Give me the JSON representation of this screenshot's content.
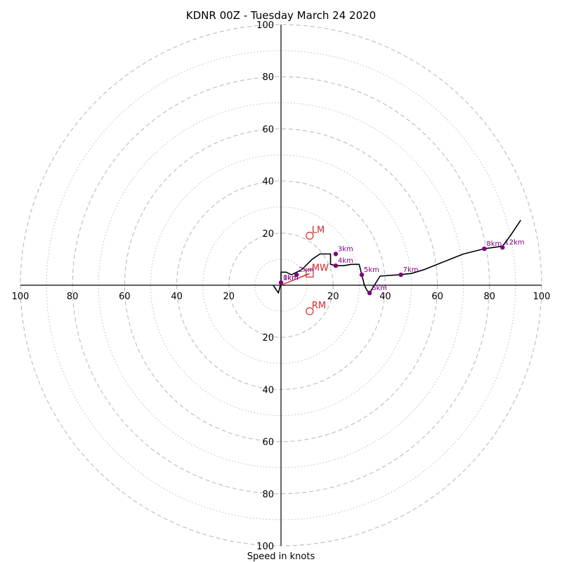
{
  "chart_data": {
    "type": "scatter",
    "title": "KDNR 00Z - Tuesday March 24 2020",
    "xlabel": "Speed in knots",
    "ring_labels": [
      "20",
      "40",
      "60",
      "80",
      "100"
    ],
    "rings_major": [
      20,
      40,
      60,
      80,
      100
    ],
    "rings_minor": [
      10,
      30,
      50,
      70,
      90
    ],
    "xlim": [
      -100,
      100
    ],
    "ylim": [
      -100,
      100
    ],
    "colors": {
      "hodograph": "#000000",
      "height_points": "#800080",
      "motion": "#d62728",
      "grid": "#bbbbbb"
    },
    "hodograph": {
      "u": [
        -3,
        -1,
        0,
        0,
        2,
        4,
        8,
        10,
        12,
        15,
        17,
        19,
        19,
        21,
        24,
        27,
        30,
        31,
        32,
        33,
        34,
        38,
        45,
        50,
        55,
        60,
        65,
        70,
        78,
        85,
        88,
        90,
        92
      ],
      "v": [
        0,
        -3,
        1,
        5,
        5,
        4,
        6,
        8,
        10,
        12,
        12,
        12,
        8,
        7.5,
        7.5,
        8,
        8,
        4,
        0,
        -2,
        -3,
        3.5,
        4,
        4.5,
        6,
        8,
        10,
        12,
        14,
        15,
        19,
        22,
        25
      ]
    },
    "height_markers": [
      {
        "label": "0km",
        "u": 0,
        "v": 1
      },
      {
        "label": "1km",
        "u": 0,
        "v": 1
      },
      {
        "label": "2km",
        "u": 6,
        "v": 4
      },
      {
        "label": "3km",
        "u": 21,
        "v": 12
      },
      {
        "label": "4km",
        "u": 21,
        "v": 7.5
      },
      {
        "label": "5km",
        "u": 31,
        "v": 4
      },
      {
        "label": "6km",
        "u": 34,
        "v": -3
      },
      {
        "label": "7km",
        "u": 46,
        "v": 4
      },
      {
        "label": "8km",
        "u": 78,
        "v": 14
      },
      {
        "label": "12km",
        "u": 85,
        "v": 14.5
      }
    ],
    "storm_motion": [
      {
        "label": "LM",
        "u": 11,
        "v": 19,
        "marker": "circle"
      },
      {
        "label": "RM",
        "u": 11,
        "v": -10,
        "marker": "circle"
      },
      {
        "label": "MW",
        "u": 11,
        "v": 4.5,
        "marker": "square"
      }
    ],
    "mean_wind_vector": {
      "u": 11,
      "v": 4.5
    }
  }
}
